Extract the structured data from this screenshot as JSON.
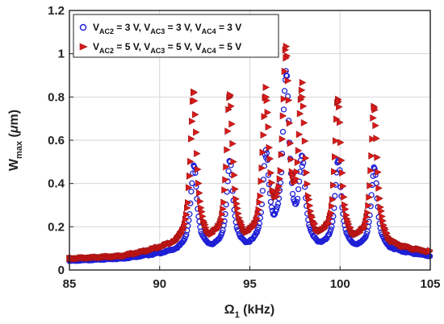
{
  "chart_data": {
    "type": "scatter",
    "xlabel": {
      "main": "Ω",
      "sub": "1",
      "unit": " (kHz)"
    },
    "ylabel": {
      "main": "W",
      "sub": "max",
      "unit_prefix": " (",
      "unit_mu": "μ",
      "unit_suffix": "m)"
    },
    "xlim": [
      85,
      105
    ],
    "ylim": [
      0,
      1.2
    ],
    "xticks": [
      85,
      90,
      95,
      100,
      105
    ],
    "yticks": [
      0,
      0.2,
      0.4,
      0.6,
      0.8,
      1,
      1.2
    ],
    "ytick_labels": [
      "0",
      "0.2",
      "0.4",
      "0.6",
      "0.8",
      "1",
      "1.2"
    ],
    "grid": true,
    "legend_position": "top-left",
    "series": [
      {
        "legend_parts": [
          {
            "t": "V",
            "sub": "AC2",
            "rest": " = 3 V, "
          },
          {
            "t": "V",
            "sub": "AC3",
            "rest": " = 3 V, "
          },
          {
            "t": "V",
            "sub": "AC4",
            "rest": " = 3 V"
          }
        ],
        "marker": "circle",
        "color": "#1f1fd6",
        "baseline": [
          [
            85,
            0.04
          ],
          [
            88,
            0.05
          ],
          [
            90,
            0.07
          ],
          [
            91,
            0.08
          ]
        ],
        "peaks": [
          {
            "x": 91.9,
            "y": 0.48
          },
          {
            "x": 93.9,
            "y": 0.5
          },
          {
            "x": 95.9,
            "y": 0.52
          },
          {
            "x": 97.0,
            "y": 0.92
          },
          {
            "x": 97.9,
            "y": 0.48
          },
          {
            "x": 99.9,
            "y": 0.5
          },
          {
            "x": 101.9,
            "y": 0.47
          }
        ]
      },
      {
        "legend_parts": [
          {
            "t": "V",
            "sub": "AC2",
            "rest": " = 5 V, "
          },
          {
            "t": "V",
            "sub": "AC3",
            "rest": " = 5 V, "
          },
          {
            "t": "V",
            "sub": "AC4",
            "rest": " = 5 V"
          }
        ],
        "marker": "triangle-right",
        "color": "#d81b1b",
        "baseline": [
          [
            85,
            0.05
          ],
          [
            88,
            0.06
          ],
          [
            90,
            0.09
          ],
          [
            91,
            0.1
          ]
        ],
        "peaks": [
          {
            "x": 91.9,
            "y": 0.82
          },
          {
            "x": 93.9,
            "y": 0.81
          },
          {
            "x": 95.9,
            "y": 0.8
          },
          {
            "x": 97.0,
            "y": 0.98
          },
          {
            "x": 97.9,
            "y": 0.8
          },
          {
            "x": 99.9,
            "y": 0.78
          },
          {
            "x": 101.9,
            "y": 0.75
          }
        ]
      }
    ]
  }
}
